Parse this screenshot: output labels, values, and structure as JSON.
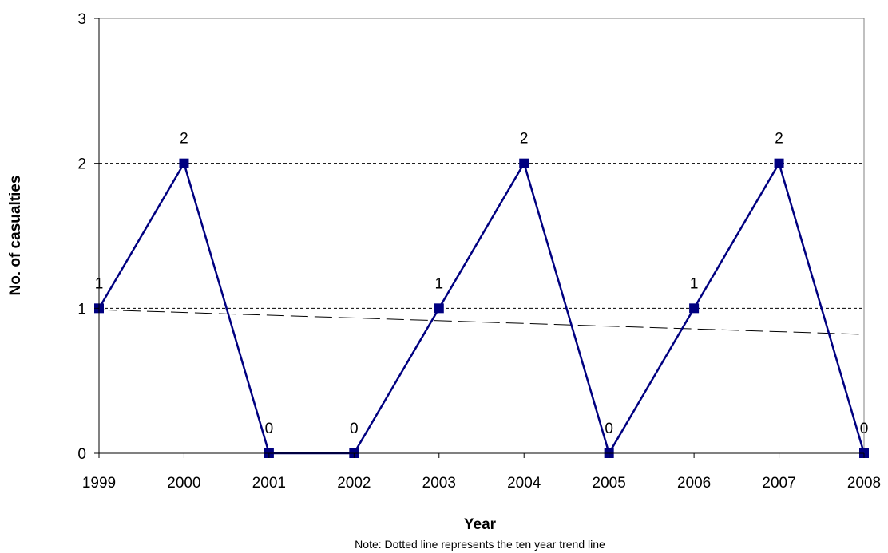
{
  "chart_data": {
    "type": "line",
    "xlabel": "Year",
    "ylabel": "No. of casualties",
    "note": "Note: Dotted line represents the ten year trend line",
    "categories": [
      "1999",
      "2000",
      "2001",
      "2002",
      "2003",
      "2004",
      "2005",
      "2006",
      "2007",
      "2008"
    ],
    "series": [
      {
        "values": [
          1,
          2,
          0,
          0,
          1,
          2,
          0,
          1,
          2,
          0
        ]
      }
    ],
    "data_labels": [
      "1",
      "2",
      "0",
      "0",
      "1",
      "2",
      "0",
      "1",
      "2",
      "0"
    ],
    "trend_line": {
      "start": 0.99,
      "end": 0.82,
      "style": "dashed"
    },
    "ylim": [
      0,
      3
    ],
    "yticks": [
      "0",
      "1",
      "2",
      "3"
    ],
    "grid": {
      "horizontal": true,
      "style": "dashed",
      "values": [
        1,
        2
      ]
    },
    "legend": "none",
    "colors": {
      "series": "#000080",
      "grid": "#000000",
      "trend": "#000000"
    }
  }
}
